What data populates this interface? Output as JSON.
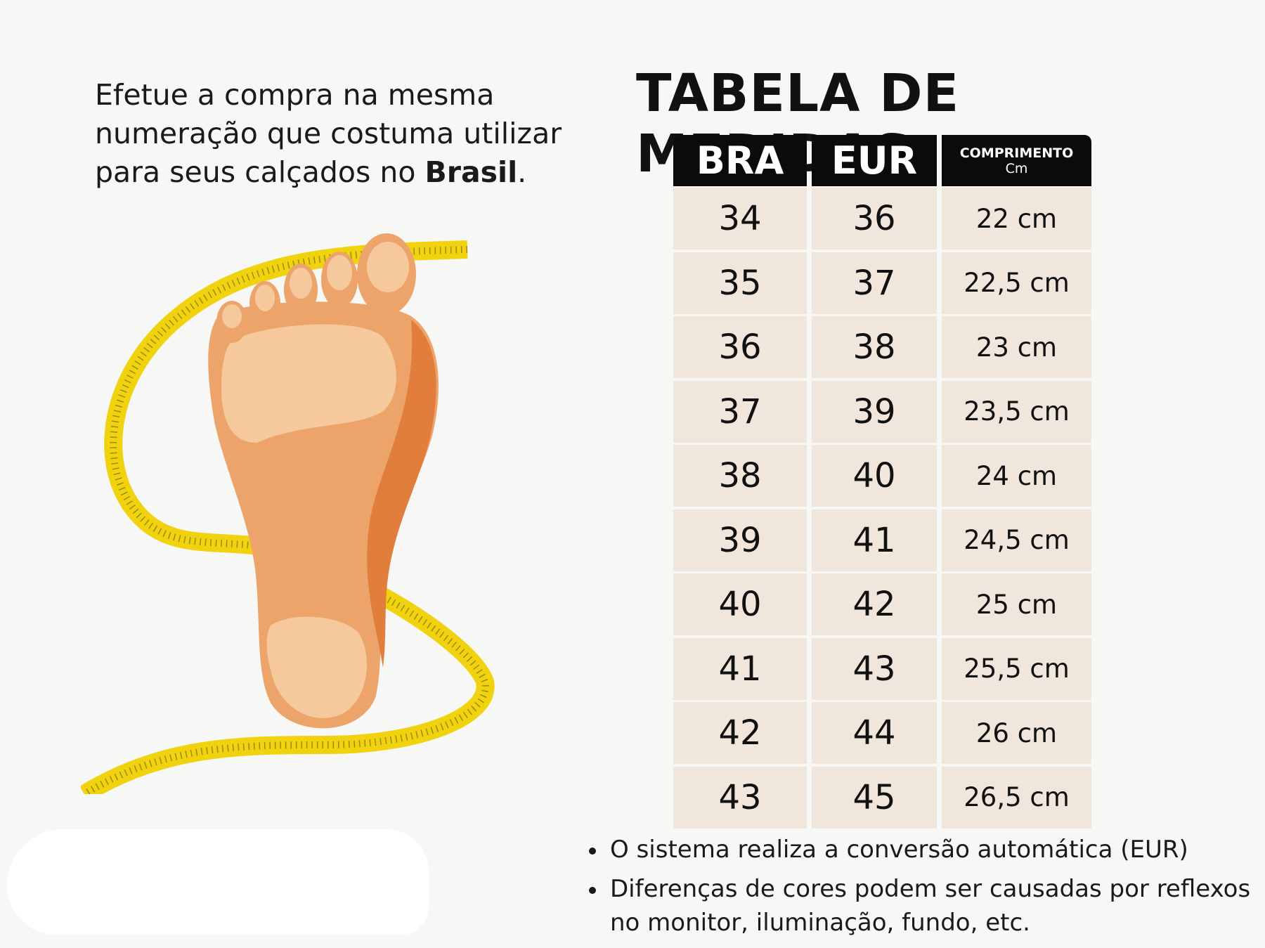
{
  "intro": {
    "text_before": "Efetue a compra na mesma numeração que costuma utilizar para seus calçados no ",
    "text_bold": "Brasil",
    "text_after": "."
  },
  "title": "TABELA DE MEDIDAS",
  "table": {
    "headers": {
      "bra": "BRA",
      "eur": "EUR",
      "length_line1": "COMPRIMENTO",
      "length_line2": "Cm"
    },
    "rows": [
      {
        "bra": "34",
        "eur": "36",
        "length": "22 cm"
      },
      {
        "bra": "35",
        "eur": "37",
        "length": "22,5 cm"
      },
      {
        "bra": "36",
        "eur": "38",
        "length": "23 cm"
      },
      {
        "bra": "37",
        "eur": "39",
        "length": "23,5 cm"
      },
      {
        "bra": "38",
        "eur": "40",
        "length": "24 cm"
      },
      {
        "bra": "39",
        "eur": "41",
        "length": "24,5 cm"
      },
      {
        "bra": "40",
        "eur": "42",
        "length": "25 cm"
      },
      {
        "bra": "41",
        "eur": "43",
        "length": "25,5 cm"
      },
      {
        "bra": "42",
        "eur": "44",
        "length": "26 cm"
      },
      {
        "bra": "43",
        "eur": "45",
        "length": "26,5 cm"
      }
    ]
  },
  "notes": [
    "O sistema realiza a conversão automática (EUR)",
    "Diferenças de cores podem ser causadas por reflexos no monitor, iluminação, fundo, etc."
  ],
  "colors": {
    "header_bg": "#0b0b0b",
    "cell_bg": "#f0e6dc",
    "tape": "#f1d20e",
    "skin": "#eca46b"
  },
  "icons": [
    "foot-sole-icon",
    "measuring-tape-icon"
  ]
}
